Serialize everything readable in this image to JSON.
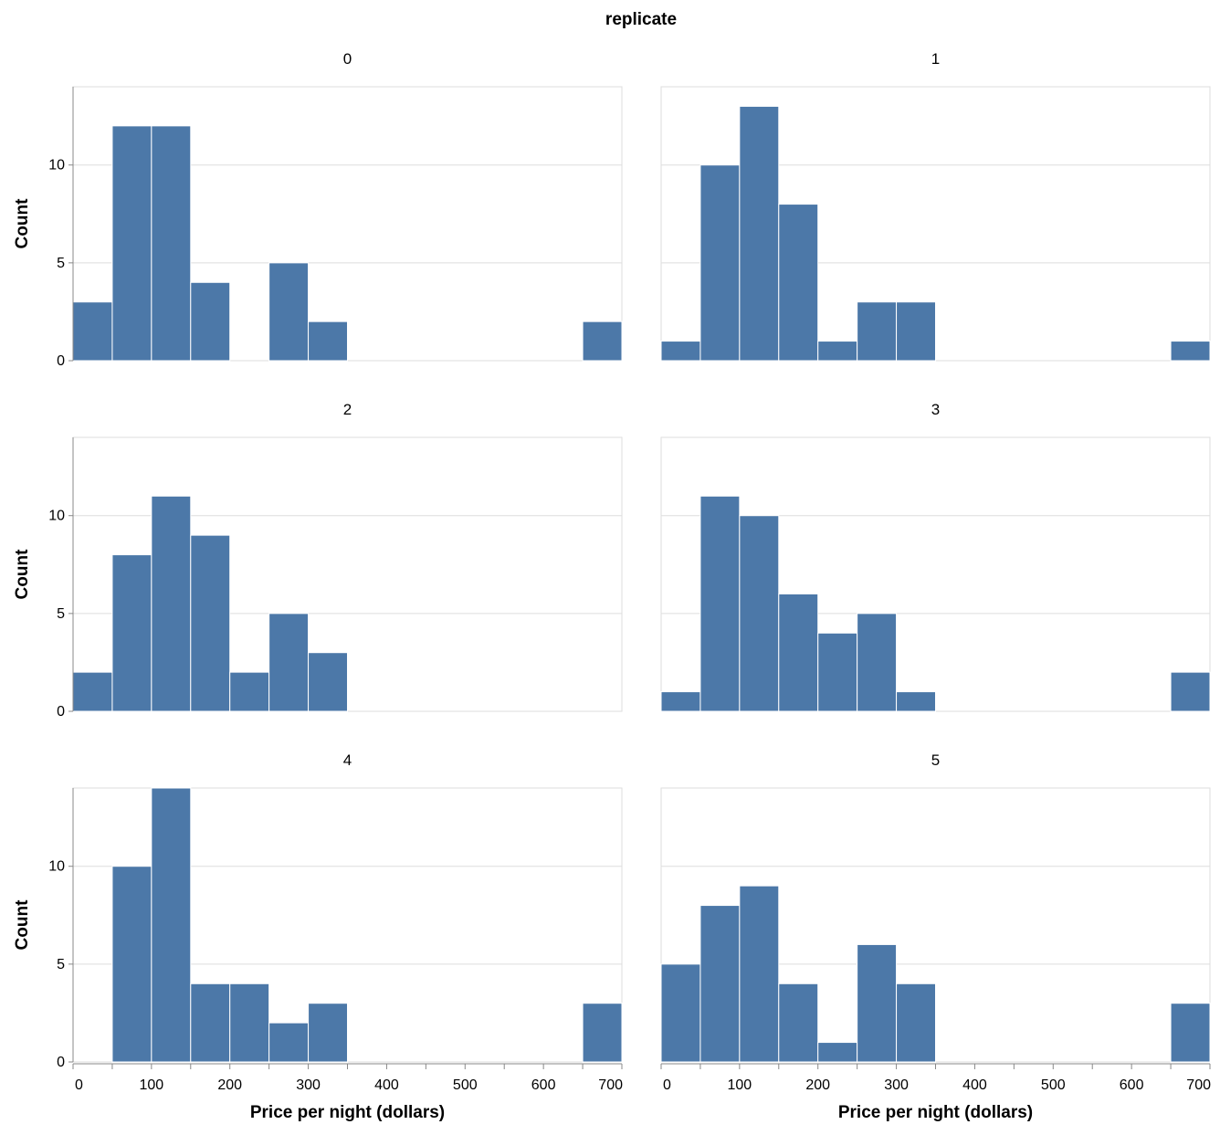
{
  "chart_data": {
    "type": "bar",
    "facet_title": "replicate",
    "xlabel": "Price per night (dollars)",
    "ylabel": "Count",
    "bin_width": 50,
    "xlim": [
      0,
      700
    ],
    "ylim": [
      0,
      14
    ],
    "x_ticks": [
      "0",
      "100",
      "200",
      "300",
      "400",
      "500",
      "600",
      "700"
    ],
    "y_ticks": [
      "0",
      "5",
      "10"
    ],
    "bar_color": "#4c78a8",
    "panels": [
      {
        "label": "0",
        "bins": [
          [
            0,
            3
          ],
          [
            50,
            12
          ],
          [
            100,
            12
          ],
          [
            150,
            4
          ],
          [
            250,
            5
          ],
          [
            300,
            2
          ],
          [
            650,
            2
          ]
        ]
      },
      {
        "label": "1",
        "bins": [
          [
            0,
            1
          ],
          [
            50,
            10
          ],
          [
            100,
            13
          ],
          [
            150,
            8
          ],
          [
            200,
            1
          ],
          [
            250,
            3
          ],
          [
            300,
            3
          ],
          [
            650,
            1
          ]
        ]
      },
      {
        "label": "2",
        "bins": [
          [
            0,
            2
          ],
          [
            50,
            8
          ],
          [
            100,
            11
          ],
          [
            150,
            9
          ],
          [
            200,
            2
          ],
          [
            250,
            5
          ],
          [
            300,
            3
          ]
        ]
      },
      {
        "label": "3",
        "bins": [
          [
            0,
            1
          ],
          [
            50,
            11
          ],
          [
            100,
            10
          ],
          [
            150,
            6
          ],
          [
            200,
            4
          ],
          [
            250,
            5
          ],
          [
            300,
            1
          ],
          [
            650,
            2
          ]
        ]
      },
      {
        "label": "4",
        "bins": [
          [
            50,
            10
          ],
          [
            100,
            14
          ],
          [
            150,
            4
          ],
          [
            200,
            4
          ],
          [
            250,
            2
          ],
          [
            300,
            3
          ],
          [
            650,
            3
          ]
        ]
      },
      {
        "label": "5",
        "bins": [
          [
            0,
            5
          ],
          [
            50,
            8
          ],
          [
            100,
            9
          ],
          [
            150,
            4
          ],
          [
            200,
            1
          ],
          [
            250,
            6
          ],
          [
            300,
            4
          ],
          [
            650,
            3
          ]
        ]
      }
    ]
  }
}
